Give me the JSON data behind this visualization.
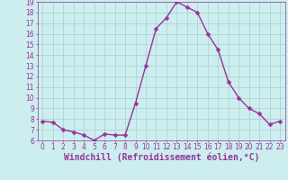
{
  "x": [
    0,
    1,
    2,
    3,
    4,
    5,
    6,
    7,
    8,
    9,
    10,
    11,
    12,
    13,
    14,
    15,
    16,
    17,
    18,
    19,
    20,
    21,
    22,
    23
  ],
  "y": [
    7.8,
    7.7,
    7.0,
    6.8,
    6.5,
    6.0,
    6.6,
    6.5,
    6.5,
    9.5,
    13.0,
    16.5,
    17.5,
    19.0,
    18.5,
    18.0,
    16.0,
    14.5,
    11.5,
    10.0,
    9.0,
    8.5,
    7.5,
    7.8
  ],
  "line_color": "#993399",
  "marker": "D",
  "marker_size": 2.5,
  "bg_color": "#cceeee",
  "grid_color": "#aacccc",
  "xlabel": "Windchill (Refroidissement éolien,°C)",
  "xlabel_color": "#993399",
  "tick_color": "#993399",
  "ylim": [
    6,
    19
  ],
  "xlim": [
    -0.5,
    23.5
  ],
  "yticks": [
    6,
    7,
    8,
    9,
    10,
    11,
    12,
    13,
    14,
    15,
    16,
    17,
    18,
    19
  ],
  "xticks": [
    0,
    1,
    2,
    3,
    4,
    5,
    6,
    7,
    8,
    9,
    10,
    11,
    12,
    13,
    14,
    15,
    16,
    17,
    18,
    19,
    20,
    21,
    22,
    23
  ],
  "tick_fontsize": 5.5,
  "xlabel_fontsize": 7.0,
  "line_width": 1.0
}
